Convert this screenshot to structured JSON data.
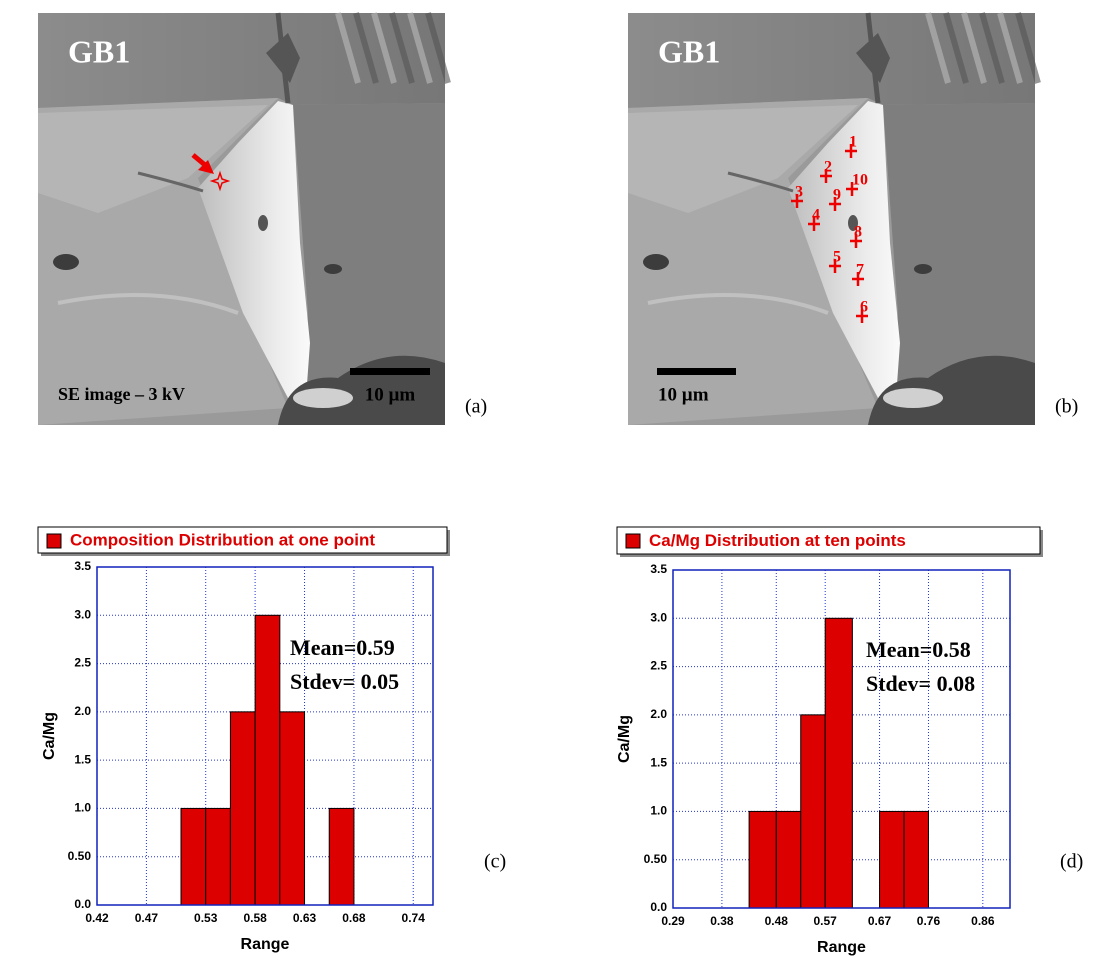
{
  "images": [
    {
      "panel_label": "(a)",
      "title": "GB1",
      "caption": "SE image – 3 kV",
      "scale_bar": "10 µm"
    },
    {
      "panel_label": "(b)",
      "title": "GB1",
      "scale_bar": "10 µm",
      "point_labels": [
        "1",
        "2",
        "3",
        "4",
        "5",
        "6",
        "7",
        "8",
        "9",
        "10"
      ]
    }
  ],
  "chart_data": [
    {
      "type": "histogram",
      "panel_label": "(c)",
      "x_label": "Range",
      "y_label": "Ca/Mg",
      "annotations": [
        "Mean=0.59",
        "Stdev= 0.05"
      ],
      "bins": [
        0.505,
        0.53,
        0.555,
        0.58,
        0.605,
        0.63,
        0.655,
        0.68
      ],
      "series": [
        {
          "name": "Composition Distribution at one point",
          "color": "#dd0000",
          "values": [
            1,
            1,
            2,
            3,
            2,
            0,
            1
          ]
        }
      ],
      "xlim": [
        0.42,
        0.76
      ],
      "xticks": [
        0.42,
        0.47,
        0.53,
        0.58,
        0.63,
        0.68,
        0.74
      ],
      "ylim": [
        0,
        3.5
      ],
      "yticks": [
        {
          "value": 0,
          "label": "0.0"
        },
        {
          "value": 0.5,
          "label": "0.50"
        },
        {
          "value": 1,
          "label": "1.0"
        },
        1.5,
        {
          "value": 2,
          "label": "2.0"
        },
        2.5,
        {
          "value": 3,
          "label": "3.0"
        },
        3.5
      ],
      "grid": true
    },
    {
      "type": "histogram",
      "panel_label": "(d)",
      "x_label": "Range",
      "y_label": "Ca/Mg",
      "annotations": [
        "Mean=0.58",
        "Stdev= 0.08"
      ],
      "bins": [
        0.43,
        0.48,
        0.525,
        0.57,
        0.62,
        0.67,
        0.715,
        0.76
      ],
      "series": [
        {
          "name": "Ca/Mg Distribution at ten points",
          "color": "#dd0000",
          "values": [
            1,
            1,
            2,
            3,
            0,
            1,
            1
          ]
        }
      ],
      "xlim": [
        0.29,
        0.91
      ],
      "xticks": [
        0.29,
        0.38,
        0.48,
        0.57,
        0.67,
        0.76,
        0.86
      ],
      "ylim": [
        0,
        3.5
      ],
      "yticks": [
        {
          "value": 0,
          "label": "0.0"
        },
        {
          "value": 0.5,
          "label": "0.50"
        },
        {
          "value": 1,
          "label": "1.0"
        },
        1.5,
        {
          "value": 2,
          "label": "2.0"
        },
        2.5,
        {
          "value": 3,
          "label": "3.0"
        },
        3.5
      ],
      "grid": true
    }
  ]
}
